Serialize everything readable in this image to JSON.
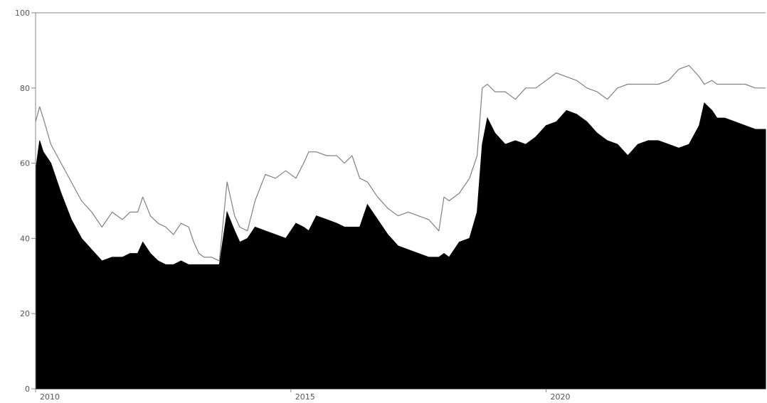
{
  "chart_data": {
    "type": "area",
    "title": "",
    "xlabel": "",
    "ylabel": "",
    "xlim": [
      2010.0,
      2024.3
    ],
    "ylim": [
      0,
      100
    ],
    "grid": false,
    "x_ticks": [
      {
        "value": 2010,
        "label": "2010"
      },
      {
        "value": 2015,
        "label": "2015"
      },
      {
        "value": 2020,
        "label": "2020"
      }
    ],
    "y_ticks": [
      {
        "value": 0,
        "label": "0"
      },
      {
        "value": 20,
        "label": "20"
      },
      {
        "value": 40,
        "label": "40"
      },
      {
        "value": 60,
        "label": "60"
      },
      {
        "value": 80,
        "label": "80"
      },
      {
        "value": 100,
        "label": "100"
      }
    ],
    "colors": {
      "area": "#000000",
      "line": "#808080",
      "background": "#ffffff",
      "axis": "#888888"
    },
    "series": [
      {
        "kind": "line",
        "x": [
          2010.0,
          2010.08,
          2010.15,
          2010.3,
          2010.5,
          2010.7,
          2010.9,
          2011.1,
          2011.3,
          2011.5,
          2011.7,
          2011.85,
          2012.0,
          2012.1,
          2012.25,
          2012.4,
          2012.55,
          2012.7,
          2012.85,
          2013.0,
          2013.1,
          2013.2,
          2013.3,
          2013.45,
          2013.6,
          2013.75,
          2013.9,
          2014.0,
          2014.15,
          2014.3,
          2014.5,
          2014.7,
          2014.9,
          2015.1,
          2015.25,
          2015.35,
          2015.5,
          2015.7,
          2015.9,
          2016.05,
          2016.2,
          2016.35,
          2016.5,
          2016.7,
          2016.9,
          2017.1,
          2017.3,
          2017.5,
          2017.7,
          2017.9,
          2018.0,
          2018.1,
          2018.3,
          2018.5,
          2018.65,
          2018.75,
          2018.85,
          2019.0,
          2019.2,
          2019.4,
          2019.6,
          2019.8,
          2020.0,
          2020.2,
          2020.4,
          2020.6,
          2020.8,
          2021.0,
          2021.2,
          2021.4,
          2021.6,
          2021.8,
          2022.0,
          2022.2,
          2022.4,
          2022.6,
          2022.8,
          2023.0,
          2023.1,
          2023.25,
          2023.35,
          2023.5,
          2023.7,
          2023.9,
          2024.1,
          2024.3
        ],
        "y": [
          71,
          75,
          72,
          65,
          60,
          55,
          50,
          47,
          43,
          47,
          45,
          47,
          47,
          51,
          46,
          44,
          43,
          41,
          44,
          43,
          39,
          36,
          35,
          35,
          34,
          55,
          46,
          43,
          42,
          50,
          57,
          56,
          58,
          56,
          60,
          63,
          63,
          62,
          62,
          60,
          62,
          56,
          55,
          51,
          48,
          46,
          47,
          46,
          45,
          42,
          51,
          50,
          52,
          56,
          62,
          80,
          81,
          79,
          79,
          77,
          80,
          80,
          82,
          84,
          83,
          82,
          80,
          79,
          77,
          80,
          81,
          81,
          81,
          81,
          82,
          85,
          86,
          83,
          81,
          82,
          81,
          81,
          81,
          81,
          80,
          80
        ]
      },
      {
        "kind": "area",
        "x": [
          2010.0,
          2010.08,
          2010.15,
          2010.3,
          2010.5,
          2010.7,
          2010.9,
          2011.1,
          2011.3,
          2011.5,
          2011.7,
          2011.85,
          2012.0,
          2012.1,
          2012.25,
          2012.4,
          2012.55,
          2012.7,
          2012.85,
          2013.0,
          2013.1,
          2013.2,
          2013.3,
          2013.45,
          2013.6,
          2013.75,
          2013.9,
          2014.0,
          2014.15,
          2014.3,
          2014.5,
          2014.7,
          2014.9,
          2015.1,
          2015.25,
          2015.35,
          2015.5,
          2015.7,
          2015.9,
          2016.05,
          2016.2,
          2016.35,
          2016.5,
          2016.7,
          2016.9,
          2017.1,
          2017.3,
          2017.5,
          2017.7,
          2017.9,
          2018.0,
          2018.1,
          2018.3,
          2018.5,
          2018.65,
          2018.75,
          2018.85,
          2019.0,
          2019.2,
          2019.4,
          2019.6,
          2019.8,
          2020.0,
          2020.2,
          2020.4,
          2020.6,
          2020.8,
          2021.0,
          2021.2,
          2021.4,
          2021.6,
          2021.8,
          2022.0,
          2022.2,
          2022.4,
          2022.6,
          2022.8,
          2023.0,
          2023.1,
          2023.25,
          2023.35,
          2023.5,
          2023.7,
          2023.9,
          2024.1,
          2024.3
        ],
        "y": [
          58,
          66,
          63,
          60,
          52,
          45,
          40,
          37,
          34,
          35,
          35,
          36,
          36,
          39,
          36,
          34,
          33,
          33,
          34,
          33,
          33,
          33,
          33,
          33,
          33,
          47,
          42,
          39,
          40,
          43,
          42,
          41,
          40,
          44,
          43,
          42,
          46,
          45,
          44,
          43,
          43,
          43,
          49,
          45,
          41,
          38,
          37,
          36,
          35,
          35,
          36,
          35,
          39,
          40,
          47,
          65,
          72,
          68,
          65,
          66,
          65,
          67,
          70,
          71,
          74,
          73,
          71,
          68,
          66,
          65,
          62,
          65,
          66,
          66,
          65,
          64,
          65,
          70,
          76,
          74,
          72,
          72,
          71,
          70,
          69,
          69
        ]
      }
    ]
  }
}
